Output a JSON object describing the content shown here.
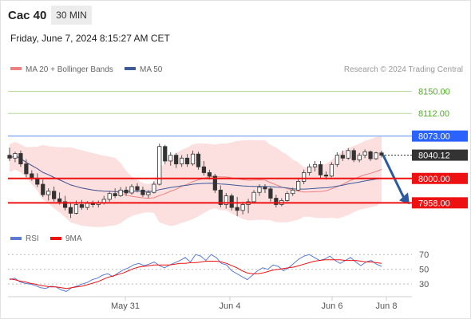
{
  "header": {
    "symbol": "Cac 40",
    "timeframe": "30 MIN",
    "datetime": "Friday, June 7, 2024 8:15:27 AM CET"
  },
  "chart_data": [
    {
      "type": "candlestick",
      "legend": [
        {
          "label": "MA 20 + Bollinger Bands",
          "color": "#f08080"
        },
        {
          "label": "MA 50",
          "color": "#3d5a99"
        }
      ],
      "source": "Research © 2024 Trading Central",
      "y_range": [
        7920,
        8170
      ],
      "levels": [
        {
          "label": "8150.00",
          "value": 8150.0,
          "kind": "target",
          "color": "#4caf1e",
          "line": "#b6dd9a"
        },
        {
          "label": "8112.00",
          "value": 8112.0,
          "kind": "target",
          "color": "#4caf1e",
          "line": "#b6dd9a"
        },
        {
          "label": "8073.00",
          "value": 8073.0,
          "kind": "pivot-up",
          "color": "#2962ff",
          "line": "#5b8def"
        },
        {
          "label": "8040.12",
          "value": 8040.12,
          "kind": "last",
          "color": "#333333",
          "line": "#333333"
        },
        {
          "label": "8000.00",
          "value": 8000.0,
          "kind": "support",
          "color": "#ee1111",
          "line": "#ee1111"
        },
        {
          "label": "7958.00",
          "value": 7958.0,
          "kind": "support",
          "color": "#ee1111",
          "line": "#ee1111"
        }
      ],
      "candles": [
        [
          8040,
          8053,
          8030,
          8035
        ],
        [
          8035,
          8046,
          8028,
          8043
        ],
        [
          8043,
          8048,
          8020,
          8025
        ],
        [
          8025,
          8033,
          8002,
          8008
        ],
        [
          8008,
          8014,
          7996,
          8000
        ],
        [
          8000,
          8009,
          7985,
          7990
        ],
        [
          7990,
          7998,
          7968,
          7972
        ],
        [
          7972,
          7983,
          7962,
          7978
        ],
        [
          7978,
          7986,
          7960,
          7965
        ],
        [
          7965,
          7976,
          7955,
          7960
        ],
        [
          7960,
          7970,
          7945,
          7950
        ],
        [
          7950,
          7958,
          7932,
          7940
        ],
        [
          7940,
          7962,
          7938,
          7955
        ],
        [
          7955,
          7963,
          7946,
          7950
        ],
        [
          7950,
          7961,
          7946,
          7957
        ],
        [
          7957,
          7962,
          7950,
          7955
        ],
        [
          7955,
          7962,
          7950,
          7958
        ],
        [
          7958,
          7970,
          7955,
          7964
        ],
        [
          7964,
          7978,
          7960,
          7974
        ],
        [
          7974,
          7983,
          7966,
          7970
        ],
        [
          7970,
          7985,
          7968,
          7980
        ],
        [
          7980,
          7986,
          7970,
          7975
        ],
        [
          7975,
          7990,
          7972,
          7986
        ],
        [
          7986,
          7992,
          7976,
          7980
        ],
        [
          7980,
          7986,
          7968,
          7972
        ],
        [
          7972,
          7980,
          7966,
          7976
        ],
        [
          7976,
          7995,
          7974,
          7990
        ],
        [
          7990,
          8060,
          7988,
          8055
        ],
        [
          8055,
          8058,
          8025,
          8030
        ],
        [
          8030,
          8045,
          8022,
          8040
        ],
        [
          8040,
          8044,
          8018,
          8025
        ],
        [
          8025,
          8040,
          8020,
          8035
        ],
        [
          8035,
          8042,
          8020,
          8025
        ],
        [
          8025,
          8048,
          8022,
          8042
        ],
        [
          8042,
          8046,
          8015,
          8020
        ],
        [
          8020,
          8030,
          8005,
          8010
        ],
        [
          8010,
          8015,
          7998,
          8004
        ],
        [
          8004,
          8008,
          7975,
          7980
        ],
        [
          7980,
          7988,
          7950,
          7955
        ],
        [
          7955,
          7975,
          7948,
          7970
        ],
        [
          7970,
          7974,
          7945,
          7950
        ],
        [
          7950,
          7968,
          7935,
          7945
        ],
        [
          7945,
          7960,
          7938,
          7955
        ],
        [
          7955,
          7965,
          7940,
          7960
        ],
        [
          7960,
          7980,
          7958,
          7976
        ],
        [
          7976,
          7990,
          7970,
          7985
        ],
        [
          7985,
          7990,
          7975,
          7982
        ],
        [
          7982,
          7986,
          7960,
          7966
        ],
        [
          7966,
          7972,
          7950,
          7955
        ],
        [
          7955,
          7966,
          7952,
          7962
        ],
        [
          7962,
          7978,
          7960,
          7974
        ],
        [
          7974,
          7984,
          7970,
          7980
        ],
        [
          7980,
          8000,
          7978,
          7995
        ],
        [
          7995,
          8015,
          7990,
          8010
        ],
        [
          8010,
          8025,
          8005,
          8020
        ],
        [
          8020,
          8030,
          8012,
          8024
        ],
        [
          8024,
          8030,
          8000,
          8006
        ],
        [
          8006,
          8012,
          7998,
          8004
        ],
        [
          8004,
          8028,
          8002,
          8024
        ],
        [
          8024,
          8045,
          8020,
          8040
        ],
        [
          8040,
          8048,
          8030,
          8035
        ],
        [
          8035,
          8052,
          8032,
          8048
        ],
        [
          8048,
          8052,
          8028,
          8032
        ],
        [
          8032,
          8044,
          8028,
          8040
        ],
        [
          8040,
          8050,
          8035,
          8046
        ],
        [
          8046,
          8048,
          8030,
          8034
        ],
        [
          8034,
          8046,
          8032,
          8044
        ],
        [
          8044,
          8048,
          8036,
          8040
        ]
      ],
      "forecast_arrow": {
        "from": 8040,
        "to": 7958
      }
    },
    {
      "type": "line",
      "legend": [
        {
          "label": "RSI",
          "color": "#5b7bd5"
        },
        {
          "label": "9MA",
          "color": "#ee1111"
        }
      ],
      "y_range": [
        15,
        80
      ],
      "y_ticks": [
        "70",
        "50",
        "30"
      ],
      "guides": [
        70,
        50,
        30
      ],
      "series": [
        {
          "name": "RSI",
          "color": "#5b7bd5",
          "values": [
            36,
            38,
            33,
            31,
            30,
            28,
            25,
            24,
            27,
            26,
            22,
            20,
            25,
            27,
            30,
            32,
            36,
            38,
            42,
            44,
            40,
            45,
            49,
            52,
            56,
            58,
            55,
            57,
            60,
            55,
            52,
            56,
            59,
            62,
            66,
            60,
            70,
            68,
            62,
            70,
            66,
            58,
            56,
            48,
            44,
            40,
            36,
            42,
            48,
            52,
            50,
            56,
            54,
            48,
            52,
            58,
            64,
            68,
            70,
            66,
            62,
            64,
            68,
            62,
            58,
            62,
            66,
            60,
            55,
            60,
            62,
            57,
            54
          ]
        },
        {
          "name": "9MA",
          "color": "#ee1111",
          "values": [
            37,
            36,
            34,
            33,
            31,
            30,
            28,
            27,
            26,
            26,
            25,
            24,
            25,
            26,
            27,
            29,
            31,
            33,
            36,
            39,
            41,
            43,
            45,
            48,
            51,
            53,
            54,
            55,
            56,
            56,
            56,
            56,
            57,
            58,
            58,
            59,
            59,
            60,
            61,
            61,
            61,
            60,
            58,
            55,
            52,
            48,
            45,
            44,
            44,
            45,
            47,
            49,
            50,
            51,
            52,
            53,
            55,
            57,
            59,
            61,
            62,
            63,
            63,
            63,
            63,
            62,
            62,
            62,
            61,
            60,
            60,
            59,
            58
          ]
        }
      ],
      "x_ticks": [
        "May 31",
        "Jun 4",
        "Jun 6",
        "Jun 8"
      ]
    }
  ]
}
